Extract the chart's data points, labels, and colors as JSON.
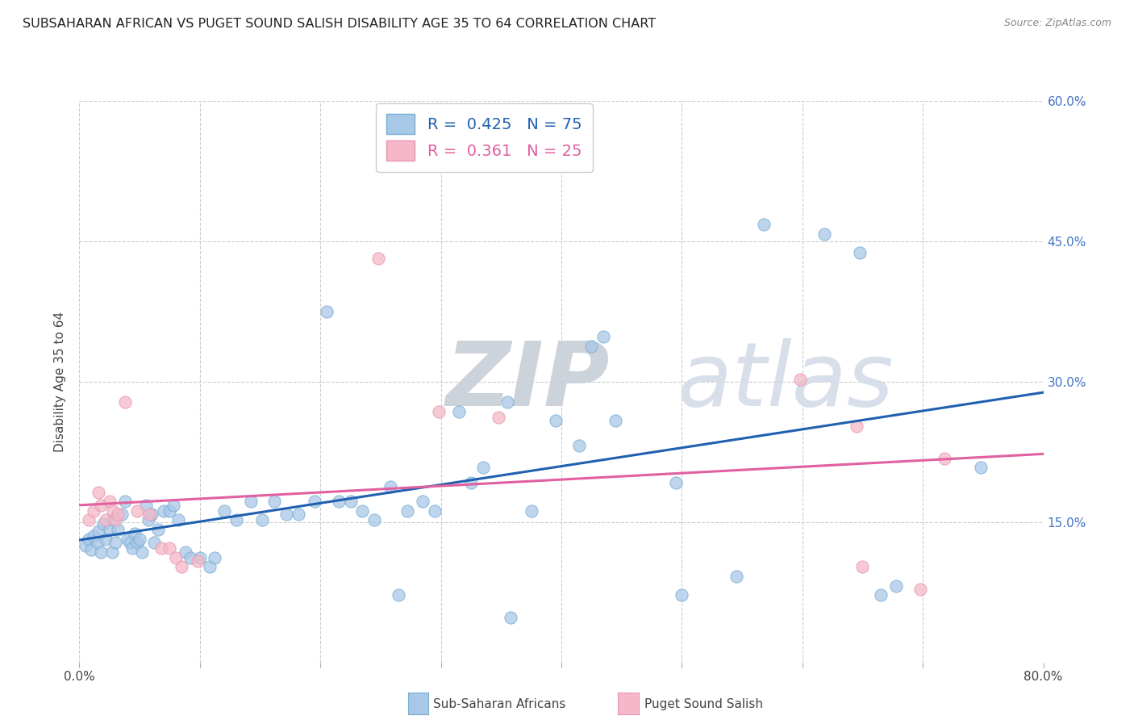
{
  "title": "SUBSAHARAN AFRICAN VS PUGET SOUND SALISH DISABILITY AGE 35 TO 64 CORRELATION CHART",
  "source": "Source: ZipAtlas.com",
  "ylabel": "Disability Age 35 to 64",
  "x_min": 0.0,
  "x_max": 0.8,
  "y_min": 0.0,
  "y_max": 0.6,
  "x_ticks": [
    0.0,
    0.1,
    0.2,
    0.3,
    0.4,
    0.5,
    0.6,
    0.7,
    0.8
  ],
  "y_ticks": [
    0.0,
    0.15,
    0.3,
    0.45,
    0.6
  ],
  "y_tick_labels_right": [
    "",
    "15.0%",
    "30.0%",
    "45.0%",
    "60.0%"
  ],
  "legend_label_blue": "Sub-Saharan Africans",
  "legend_label_pink": "Puget Sound Salish",
  "R_blue": 0.425,
  "N_blue": 75,
  "R_pink": 0.361,
  "N_pink": 25,
  "blue_fill": "#a8c8e8",
  "pink_fill": "#f4b8c8",
  "blue_edge": "#7aaed0",
  "pink_edge": "#e898b0",
  "blue_line_color": "#2060b0",
  "pink_line_color": "#e060a0",
  "blue_scatter": [
    [
      0.005,
      0.125
    ],
    [
      0.008,
      0.132
    ],
    [
      0.01,
      0.12
    ],
    [
      0.012,
      0.135
    ],
    [
      0.015,
      0.128
    ],
    [
      0.016,
      0.14
    ],
    [
      0.018,
      0.118
    ],
    [
      0.02,
      0.148
    ],
    [
      0.022,
      0.132
    ],
    [
      0.025,
      0.142
    ],
    [
      0.027,
      0.118
    ],
    [
      0.028,
      0.152
    ],
    [
      0.03,
      0.128
    ],
    [
      0.032,
      0.142
    ],
    [
      0.035,
      0.158
    ],
    [
      0.038,
      0.172
    ],
    [
      0.04,
      0.132
    ],
    [
      0.042,
      0.128
    ],
    [
      0.044,
      0.122
    ],
    [
      0.046,
      0.138
    ],
    [
      0.048,
      0.128
    ],
    [
      0.05,
      0.132
    ],
    [
      0.052,
      0.118
    ],
    [
      0.055,
      0.168
    ],
    [
      0.057,
      0.152
    ],
    [
      0.06,
      0.158
    ],
    [
      0.062,
      0.128
    ],
    [
      0.065,
      0.142
    ],
    [
      0.07,
      0.162
    ],
    [
      0.075,
      0.162
    ],
    [
      0.078,
      0.168
    ],
    [
      0.082,
      0.152
    ],
    [
      0.088,
      0.118
    ],
    [
      0.092,
      0.112
    ],
    [
      0.1,
      0.112
    ],
    [
      0.108,
      0.102
    ],
    [
      0.112,
      0.112
    ],
    [
      0.12,
      0.162
    ],
    [
      0.13,
      0.152
    ],
    [
      0.142,
      0.172
    ],
    [
      0.152,
      0.152
    ],
    [
      0.162,
      0.172
    ],
    [
      0.172,
      0.158
    ],
    [
      0.182,
      0.158
    ],
    [
      0.195,
      0.172
    ],
    [
      0.205,
      0.375
    ],
    [
      0.215,
      0.172
    ],
    [
      0.225,
      0.172
    ],
    [
      0.235,
      0.162
    ],
    [
      0.245,
      0.152
    ],
    [
      0.258,
      0.188
    ],
    [
      0.265,
      0.072
    ],
    [
      0.272,
      0.162
    ],
    [
      0.285,
      0.172
    ],
    [
      0.295,
      0.162
    ],
    [
      0.315,
      0.268
    ],
    [
      0.325,
      0.192
    ],
    [
      0.335,
      0.208
    ],
    [
      0.355,
      0.278
    ],
    [
      0.358,
      0.048
    ],
    [
      0.375,
      0.162
    ],
    [
      0.395,
      0.258
    ],
    [
      0.415,
      0.232
    ],
    [
      0.425,
      0.338
    ],
    [
      0.435,
      0.348
    ],
    [
      0.445,
      0.258
    ],
    [
      0.495,
      0.192
    ],
    [
      0.5,
      0.072
    ],
    [
      0.545,
      0.092
    ],
    [
      0.568,
      0.468
    ],
    [
      0.618,
      0.458
    ],
    [
      0.648,
      0.438
    ],
    [
      0.665,
      0.072
    ],
    [
      0.678,
      0.082
    ],
    [
      0.748,
      0.208
    ]
  ],
  "pink_scatter": [
    [
      0.008,
      0.152
    ],
    [
      0.012,
      0.162
    ],
    [
      0.016,
      0.182
    ],
    [
      0.018,
      0.168
    ],
    [
      0.022,
      0.152
    ],
    [
      0.025,
      0.172
    ],
    [
      0.028,
      0.162
    ],
    [
      0.03,
      0.152
    ],
    [
      0.032,
      0.158
    ],
    [
      0.038,
      0.278
    ],
    [
      0.048,
      0.162
    ],
    [
      0.058,
      0.158
    ],
    [
      0.068,
      0.122
    ],
    [
      0.075,
      0.122
    ],
    [
      0.08,
      0.112
    ],
    [
      0.085,
      0.102
    ],
    [
      0.098,
      0.108
    ],
    [
      0.248,
      0.432
    ],
    [
      0.298,
      0.268
    ],
    [
      0.348,
      0.262
    ],
    [
      0.598,
      0.302
    ],
    [
      0.645,
      0.252
    ],
    [
      0.65,
      0.102
    ],
    [
      0.698,
      0.078
    ],
    [
      0.718,
      0.218
    ]
  ],
  "background_color": "#ffffff",
  "grid_color": "#cccccc",
  "watermark_text": "ZIPatlas",
  "watermark_color": "#c8d8ea"
}
